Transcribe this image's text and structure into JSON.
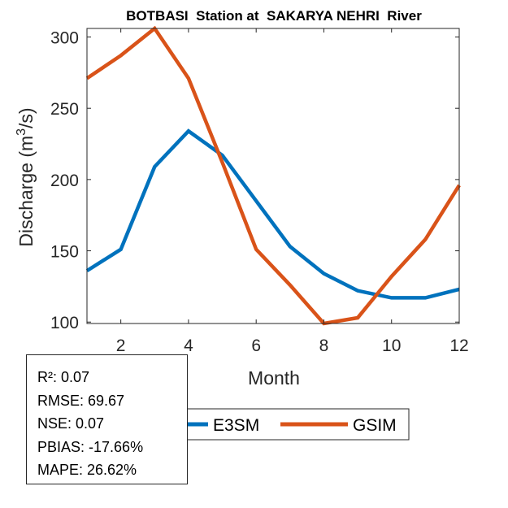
{
  "chart_data": {
    "type": "line",
    "title": "BOTBASI  Station at  SAKARYA NEHRI  River",
    "xlabel": "Month",
    "ylabel": "Discharge (m",
    "ylabel_sup": "3",
    "ylabel_end": "/s)",
    "x": [
      1,
      2,
      3,
      4,
      5,
      6,
      7,
      8,
      9,
      10,
      11,
      12
    ],
    "xlim": [
      1,
      12
    ],
    "ylim": [
      99,
      306
    ],
    "xticks": [
      2,
      4,
      6,
      8,
      10,
      12
    ],
    "yticks": [
      100,
      150,
      200,
      250,
      300
    ],
    "grid": false,
    "legend_position": "bottom-outside",
    "series": [
      {
        "name": "E3SM",
        "color": "#0072BD",
        "values": [
          136,
          151,
          209,
          234,
          217,
          185,
          153,
          134,
          122,
          117,
          117,
          123
        ]
      },
      {
        "name": "GSIM",
        "color": "#D95319",
        "values": [
          271,
          287,
          306,
          271,
          212,
          151,
          126,
          99,
          103,
          132,
          158,
          196
        ]
      }
    ]
  },
  "stats": {
    "lines": [
      "R²: 0.07",
      "RMSE: 69.67",
      "NSE: 0.07",
      "PBIAS: -17.66%",
      "MAPE: 26.62%"
    ]
  }
}
